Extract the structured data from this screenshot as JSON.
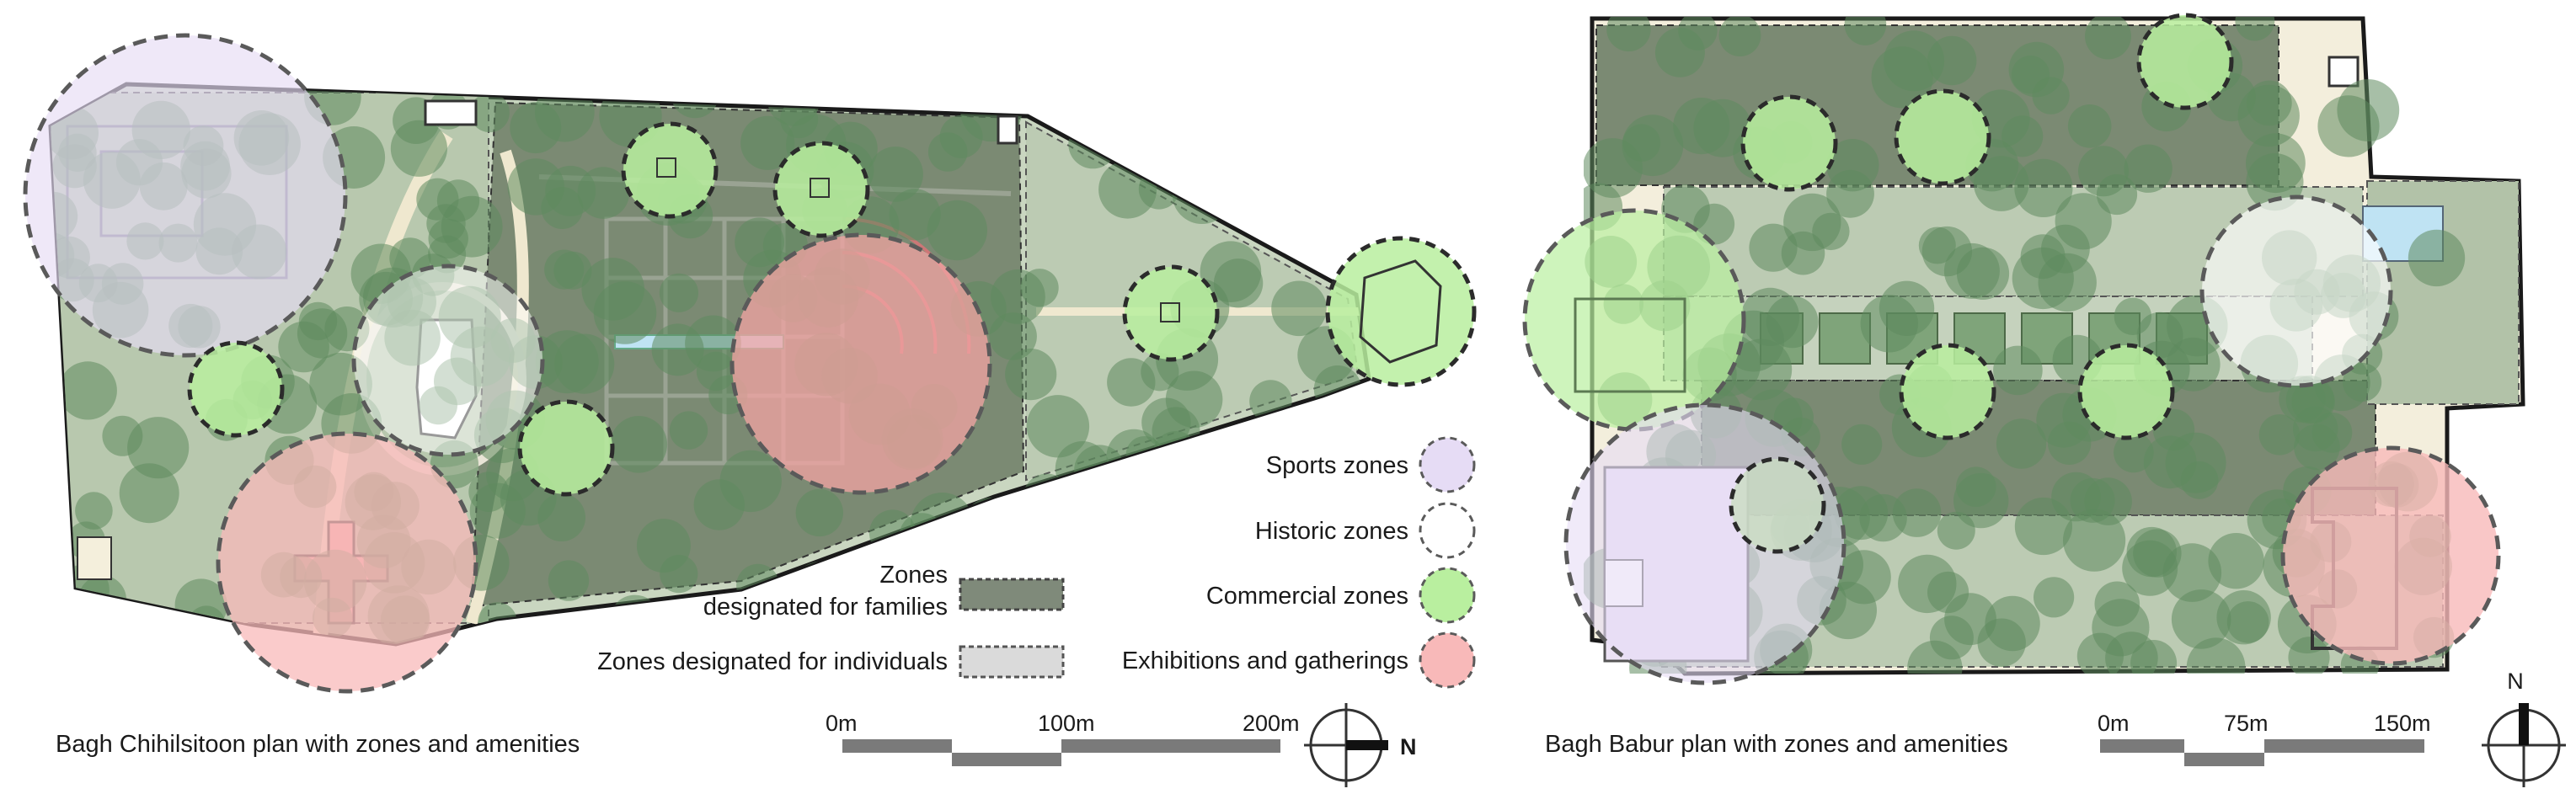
{
  "left_map": {
    "caption": "Bagh Chihilsitoon plan with zones and amenities",
    "scale": {
      "labels": [
        "0m",
        "100m",
        "200m"
      ]
    },
    "north": "N"
  },
  "right_map": {
    "caption": "Bagh Babur plan with zones and amenities",
    "scale": {
      "labels": [
        "0m",
        "75m",
        "150m"
      ]
    },
    "north": "N"
  },
  "legend_zones": {
    "families": {
      "line1": "Zones",
      "line2": "designated for families"
    },
    "individuals": "Zones designated for individuals"
  },
  "legend_types": [
    {
      "label": "Sports zones",
      "color": "#e6dcf5"
    },
    {
      "label": "Historic zones",
      "color": "#ffffff"
    },
    {
      "label": "Commercial zones",
      "color": "#b9ef9f"
    },
    {
      "label": "Exhibitions and gatherings",
      "color": "#f8b9b9"
    }
  ],
  "colors": {
    "family_zone": "#6f7f6a",
    "individual_zone": "#b6c4ad",
    "tree": "#5f8a5f",
    "path": "#efe8cf",
    "boundary": "#1a1a1a",
    "water": "#bfe3f3"
  }
}
